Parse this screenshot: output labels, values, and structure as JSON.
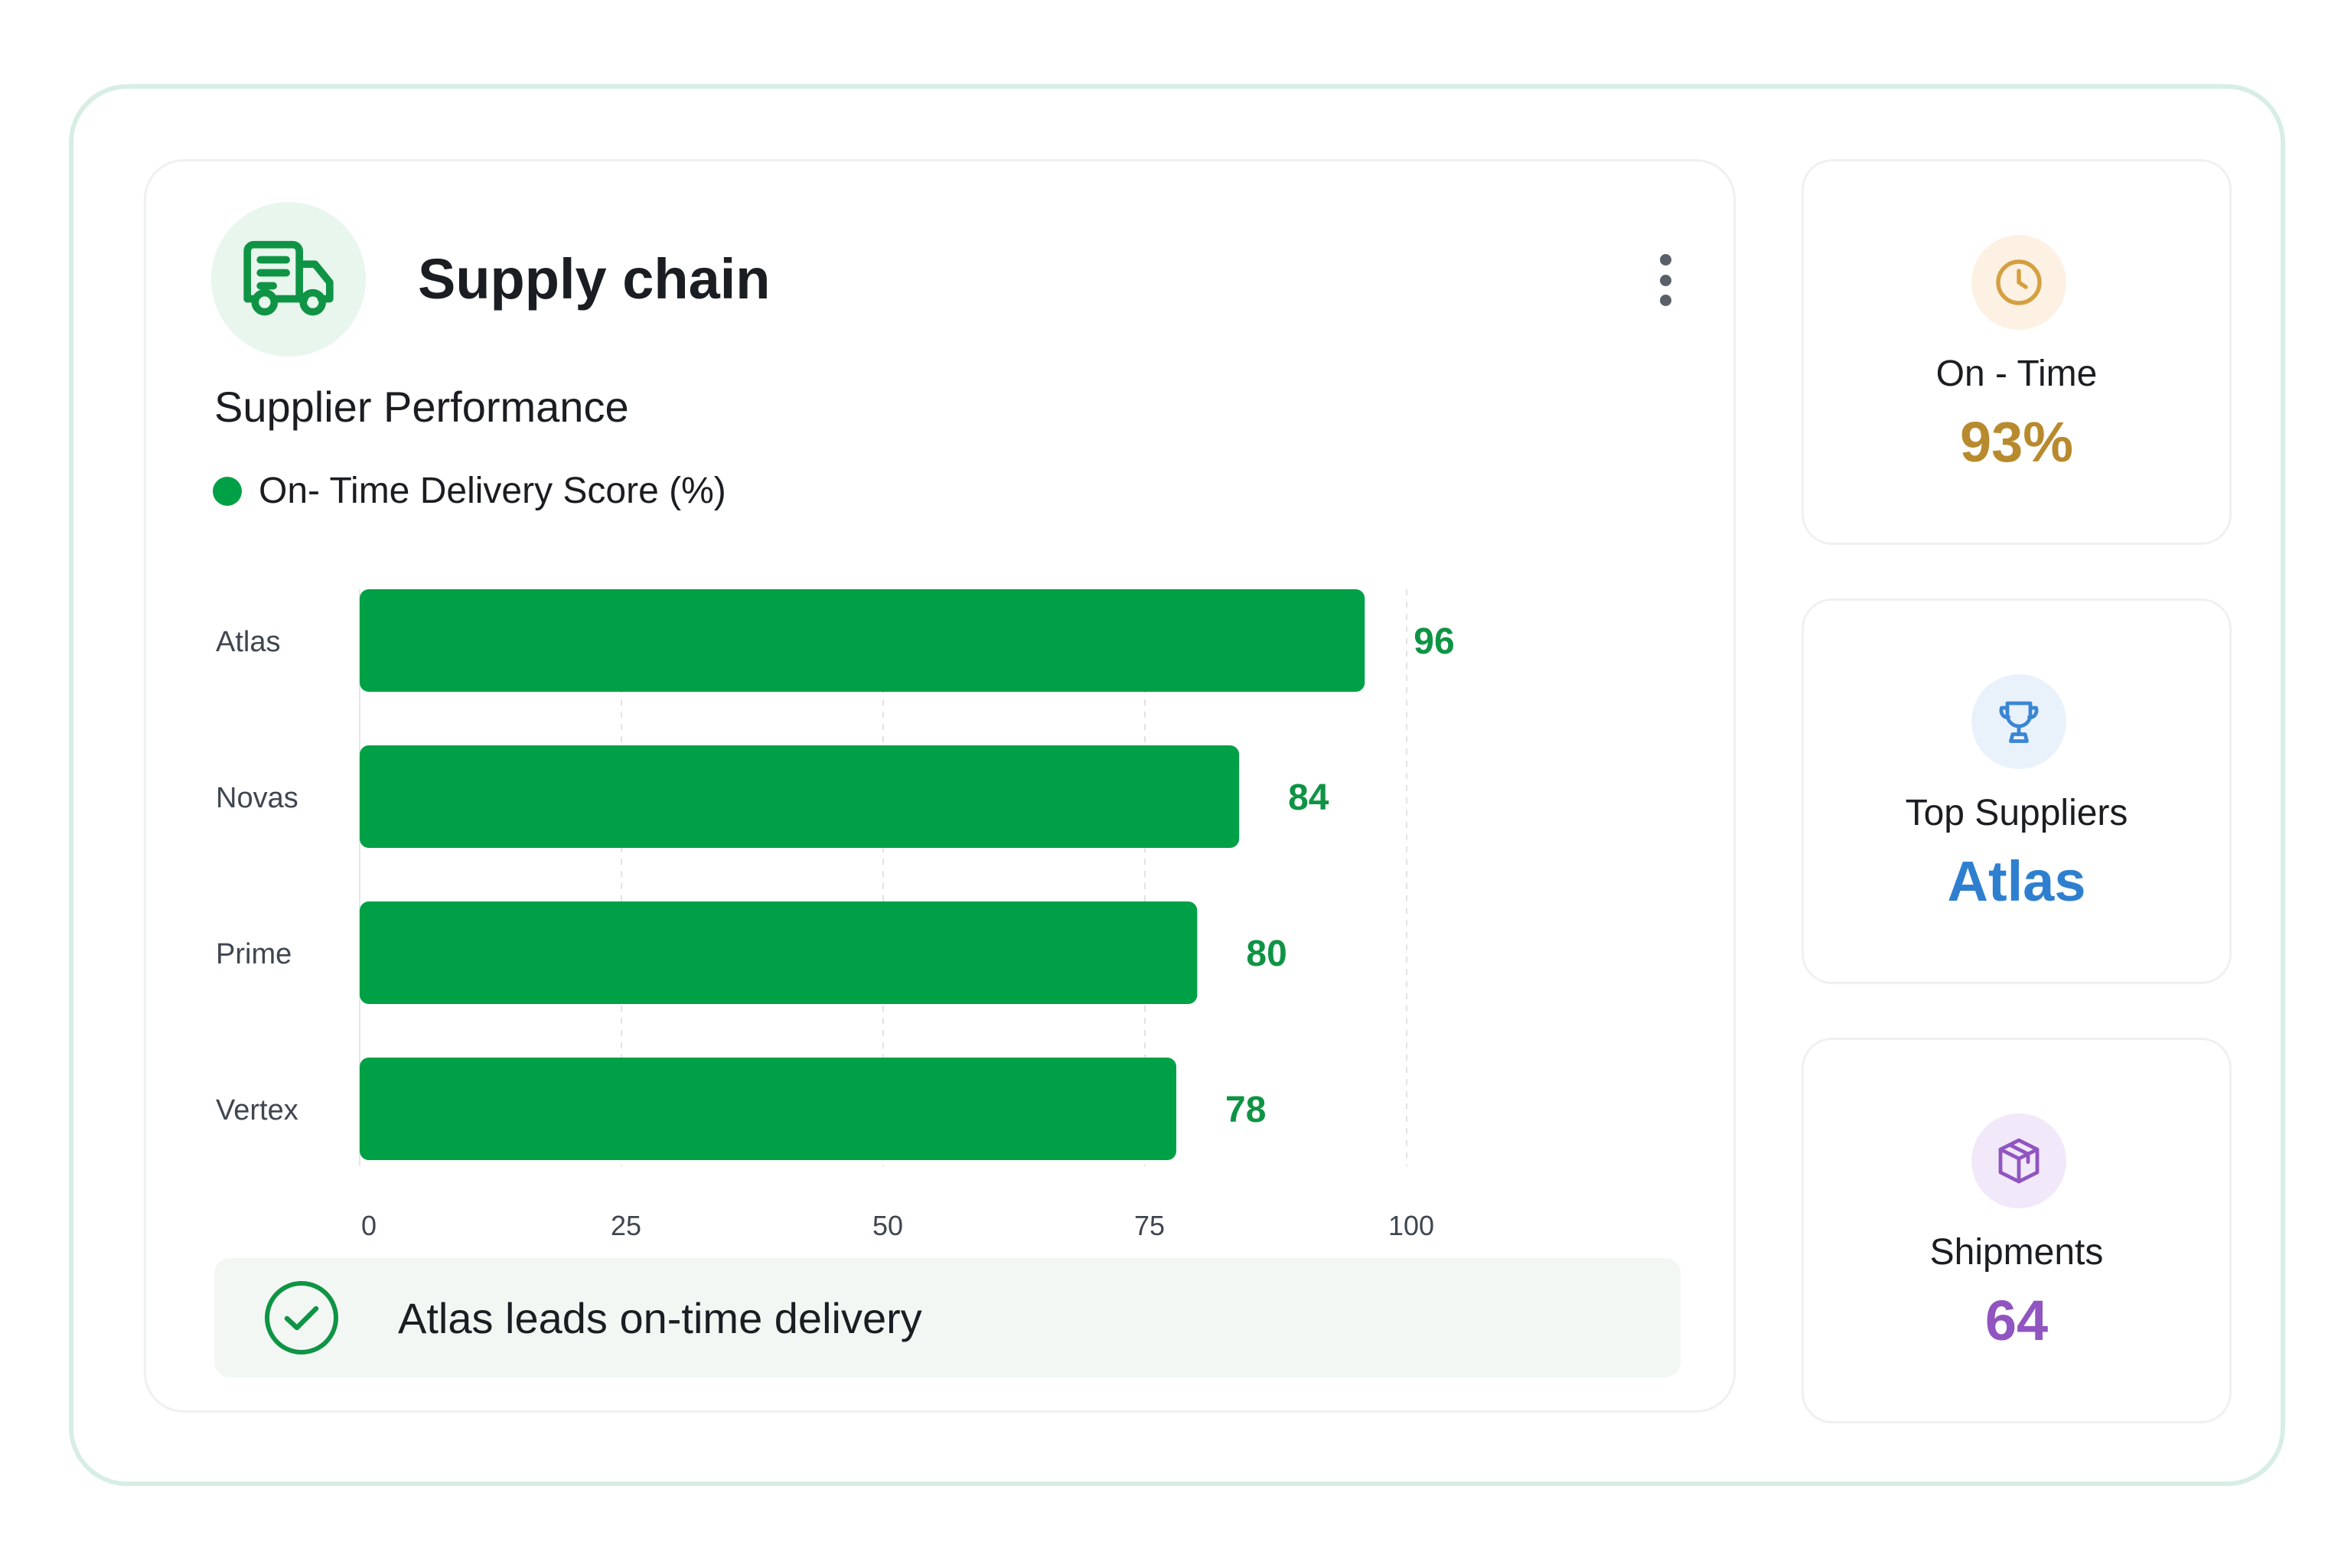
{
  "header": {
    "title": "Supply chain",
    "icon": "truck-icon",
    "menu_icon": "more-vertical-icon"
  },
  "subtitle": "Supplier Performance",
  "legend": {
    "label": "On- Time Delivery Score (%)",
    "color": "#00a046"
  },
  "chart_data": {
    "type": "bar",
    "orientation": "horizontal",
    "categories": [
      "Atlas",
      "Novas",
      "Prime",
      "Vertex"
    ],
    "series": [
      {
        "name": "On- Time Delivery Score (%)",
        "values": [
          96,
          84,
          80,
          78
        ]
      }
    ],
    "xlim": [
      0,
      100
    ],
    "x_ticks": [
      "0",
      "25",
      "50",
      "75",
      "100"
    ],
    "grid": "vertical dashed",
    "bar_color": "#00a046",
    "label_color": "#0e9444"
  },
  "footer": {
    "text": "Atlas leads on-time delivery",
    "icon": "check-circle-icon"
  },
  "stats": [
    {
      "icon": "clock-icon",
      "label": "On - Time",
      "value": "93%",
      "color": "#b88a2e",
      "bg": "#fdf1e4"
    },
    {
      "icon": "trophy-icon",
      "label": "Top Suppliers",
      "value": "Atlas",
      "color": "#2f7fd0",
      "bg": "#e9f2fb"
    },
    {
      "icon": "box-icon",
      "label": "Shipments",
      "value": "64",
      "color": "#9055c0",
      "bg": "#f1e8f9"
    }
  ]
}
